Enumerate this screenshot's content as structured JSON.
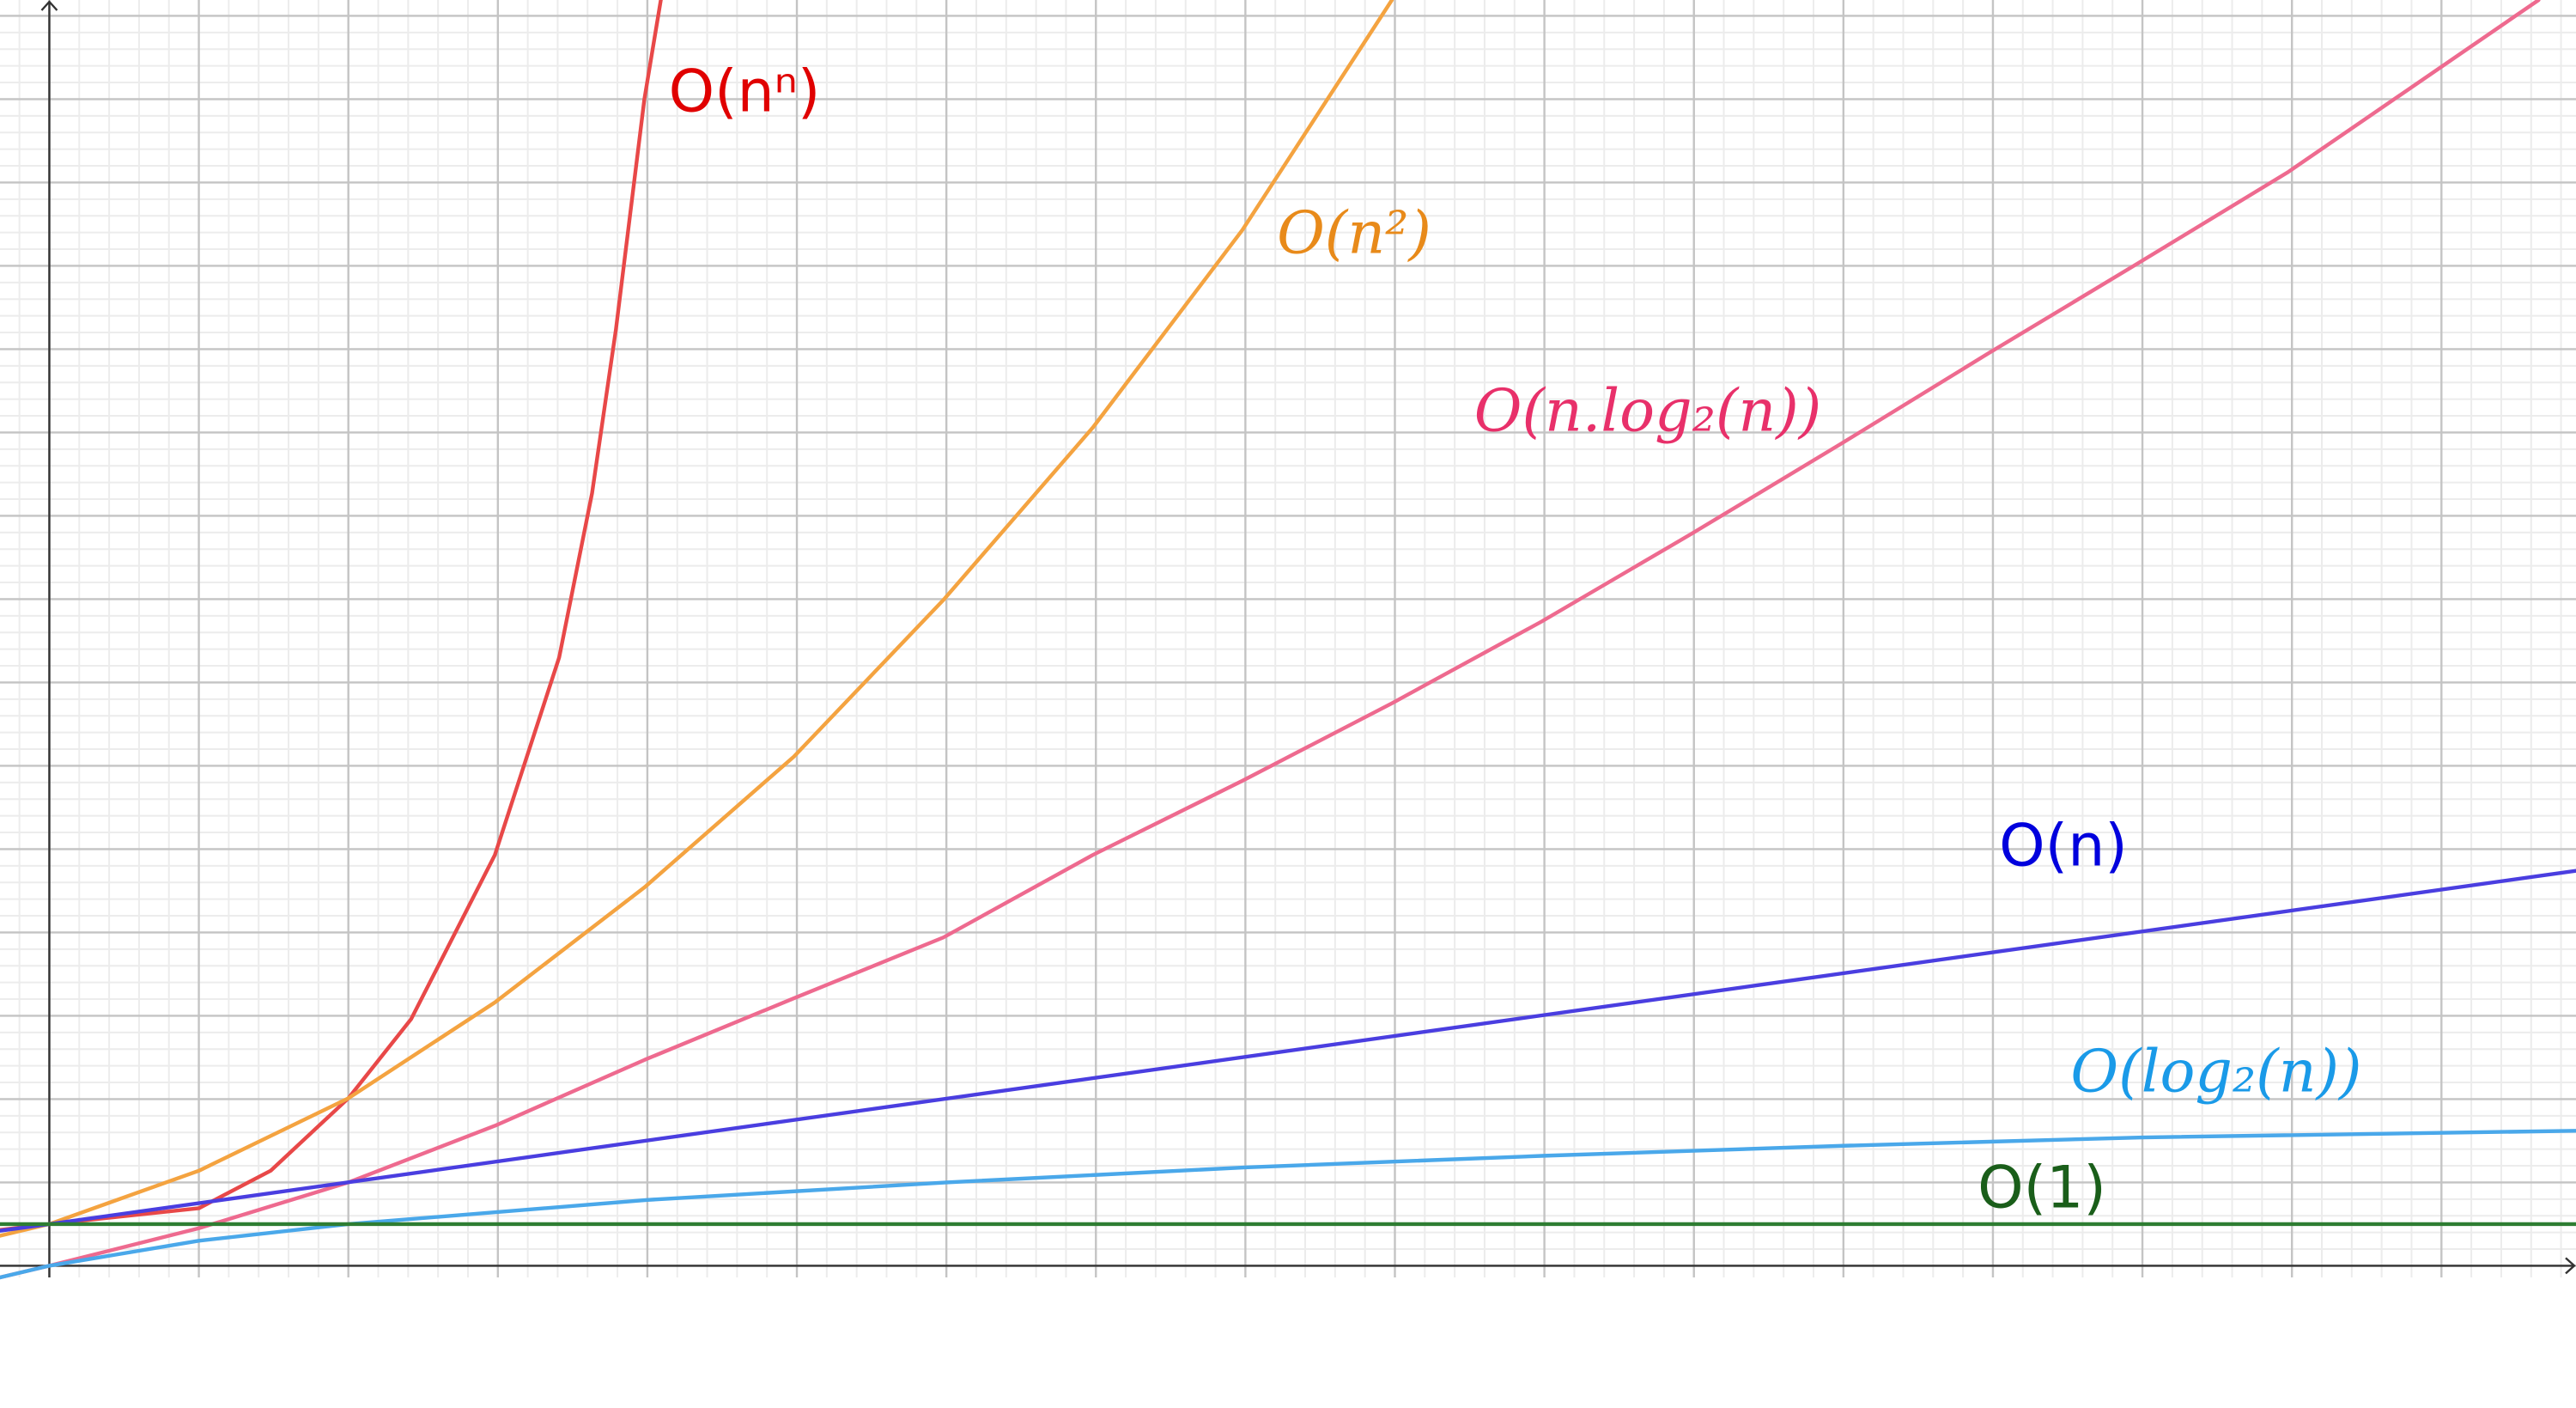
{
  "chart_data": {
    "type": "line",
    "xlim": [
      -0.33,
      16.9
    ],
    "ylim": [
      -0.14,
      15.19
    ],
    "xticks": [
      0,
      1,
      2,
      3,
      4,
      5,
      6,
      7,
      8,
      9,
      10,
      11,
      12,
      13,
      14,
      15,
      16
    ],
    "yticks": [
      0,
      1,
      2,
      3,
      4,
      5,
      6,
      7,
      8,
      9,
      10,
      11,
      12,
      13,
      14,
      15
    ],
    "grid": true,
    "minor_grid_divisions": 5,
    "series": [
      {
        "name": "O(nⁿ)",
        "color": "#e84848",
        "label_color": "#e00000",
        "label_style": "sans",
        "x": [
          -0.33,
          0,
          1,
          1.48,
          2,
          2.42,
          2.98,
          3.41,
          3.63,
          3.79,
          3.98,
          4.09
        ],
        "values": [
          0.43,
          0.5,
          0.69,
          1.14,
          2.01,
          2.96,
          4.93,
          7.3,
          9.27,
          11.24,
          14.0,
          15.19
        ]
      },
      {
        "name": "O(n²)",
        "color": "#f4a340",
        "label_color": "#e88a1a",
        "label_style": "serif",
        "x": [
          -0.33,
          0,
          1,
          2,
          2.98,
          3.98,
          4.98,
          5.98,
          6.98,
          7.98,
          8.98
        ],
        "values": [
          0.36,
          0.5,
          1.14,
          2.01,
          3.16,
          4.54,
          6.11,
          7.99,
          10.06,
          12.43,
          15.19
        ]
      },
      {
        "name": "O(n.log₂(n))",
        "color": "#ee6a8f",
        "label_color": "#e8306a",
        "label_style": "serif",
        "x": [
          -0.33,
          0,
          1,
          2,
          2.98,
          3.98,
          4.98,
          5.98,
          6.98,
          7.98,
          8.98,
          9.98,
          10.98,
          11.98,
          12.97,
          13.97,
          14.97,
          16.65
        ],
        "values": [
          -0.14,
          0,
          0.45,
          1.0,
          1.68,
          2.47,
          3.21,
          3.94,
          4.93,
          5.82,
          6.75,
          7.73,
          8.78,
          9.86,
          10.95,
          12.03,
          13.12,
          15.19
        ]
      },
      {
        "name": "O(n)",
        "color": "#4a3ee0",
        "label_color": "#0000dd",
        "label_style": "sans",
        "x": [
          -0.33,
          0,
          16.9
        ],
        "values": [
          0.42,
          0.5,
          4.74
        ]
      },
      {
        "name": "O(log₂(n))",
        "color": "#4aa8ea",
        "label_color": "#1a9ae8",
        "label_style": "serif",
        "x": [
          -0.33,
          0,
          1,
          2,
          4,
          6,
          8,
          10,
          12,
          14,
          16.9
        ],
        "values": [
          -0.14,
          0,
          0.3,
          0.5,
          0.79,
          1.0,
          1.18,
          1.32,
          1.44,
          1.54,
          1.62
        ]
      },
      {
        "name": "O(1)",
        "color": "#2e7d32",
        "label_color": "#1a5e1a",
        "label_style": "sans",
        "x": [
          -0.33,
          16.9
        ],
        "values": [
          0.5,
          0.5
        ]
      }
    ]
  }
}
